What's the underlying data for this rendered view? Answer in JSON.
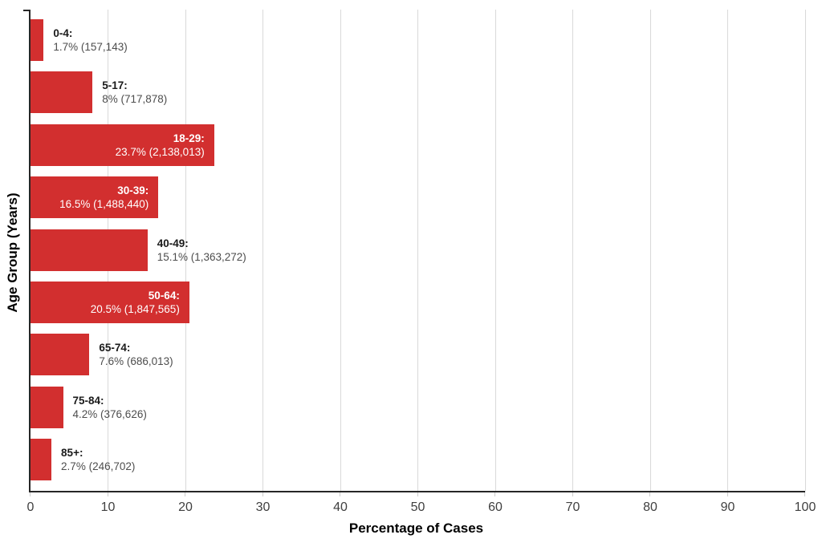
{
  "chart_data": {
    "type": "bar",
    "orientation": "horizontal",
    "title": "",
    "xlabel": "Percentage of Cases",
    "ylabel": "Age Group (Years)",
    "xlim": [
      0,
      100
    ],
    "x_ticks": [
      0,
      10,
      20,
      30,
      40,
      50,
      60,
      70,
      80,
      90,
      100
    ],
    "grid": true,
    "legend": false,
    "bar_color": "#d22f2f",
    "gridline_color": "#d9d9d9",
    "axis_line_color": "#262626",
    "categories": [
      "0-4",
      "5-17",
      "18-29",
      "30-39",
      "40-49",
      "50-64",
      "65-74",
      "75-84",
      "85+"
    ],
    "values": [
      1.7,
      8,
      23.7,
      16.5,
      15.1,
      20.5,
      7.6,
      4.2,
      2.7
    ],
    "counts": [
      "157,143",
      "717,878",
      "2,138,013",
      "1,488,440",
      "1,363,272",
      "1,847,565",
      "686,013",
      "376,626",
      "246,702"
    ],
    "bars": [
      {
        "group": "0-4",
        "pct": 1.7,
        "label_line1": "0-4:",
        "label_line2": "1.7% (157,143)"
      },
      {
        "group": "5-17",
        "pct": 8,
        "label_line1": "5-17:",
        "label_line2": "8% (717,878)"
      },
      {
        "group": "18-29",
        "pct": 23.7,
        "label_line1": "18-29:",
        "label_line2": "23.7% (2,138,013)"
      },
      {
        "group": "30-39",
        "pct": 16.5,
        "label_line1": "30-39:",
        "label_line2": "16.5% (1,488,440)"
      },
      {
        "group": "40-49",
        "pct": 15.1,
        "label_line1": "40-49:",
        "label_line2": "15.1% (1,363,272)"
      },
      {
        "group": "50-64",
        "pct": 20.5,
        "label_line1": "50-64:",
        "label_line2": "20.5% (1,847,565)"
      },
      {
        "group": "65-74",
        "pct": 7.6,
        "label_line1": "65-74:",
        "label_line2": "7.6% (686,013)"
      },
      {
        "group": "75-84",
        "pct": 4.2,
        "label_line1": "75-84:",
        "label_line2": "4.2% (376,626)"
      },
      {
        "group": "85+",
        "pct": 2.7,
        "label_line1": "85+:",
        "label_line2": "2.7% (246,702)"
      }
    ]
  }
}
